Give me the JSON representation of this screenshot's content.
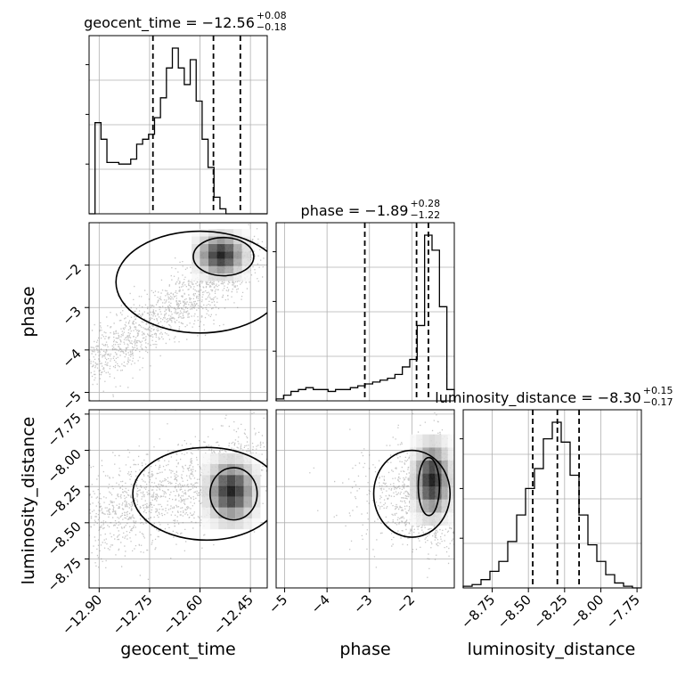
{
  "chart_data": {
    "type": "corner",
    "parameters": [
      {
        "name": "geocent_time",
        "title": {
          "label": "geocent_time = −12.56",
          "upper": "+0.08",
          "lower": "−0.18"
        },
        "range": [
          -12.93,
          -12.4
        ],
        "ticks": [
          "−12.90",
          "−12.75",
          "−12.60",
          "−12.45"
        ],
        "tick_values": [
          -12.9,
          -12.75,
          -12.6,
          -12.45
        ],
        "quantile_lines": [
          -12.74,
          -12.56,
          -12.48
        ],
        "histogram": {
          "edges_start": -12.93,
          "bin_width": 0.0177,
          "counts": [
            0.0,
            0.55,
            0.45,
            0.31,
            0.31,
            0.3,
            0.3,
            0.33,
            0.42,
            0.45,
            0.48,
            0.58,
            0.7,
            0.88,
            1.0,
            0.88,
            0.78,
            0.93,
            0.68,
            0.45,
            0.28,
            0.1,
            0.03,
            0.0,
            0.0,
            0.0,
            0.0,
            0.0,
            0.0,
            0.0
          ]
        }
      },
      {
        "name": "phase",
        "title": {
          "label": "phase = −1.89",
          "upper": "+0.28",
          "lower": "−1.22"
        },
        "range": [
          -5.2,
          -1.0
        ],
        "ticks": [
          "−5",
          "−4",
          "−3",
          "−2"
        ],
        "tick_values": [
          -5,
          -4,
          -3,
          -2
        ],
        "quantile_lines": [
          -3.11,
          -1.89,
          -1.61
        ],
        "histogram": {
          "edges_start": -5.2,
          "bin_width": 0.175,
          "counts": [
            0.01,
            0.03,
            0.05,
            0.06,
            0.07,
            0.06,
            0.06,
            0.05,
            0.06,
            0.06,
            0.07,
            0.08,
            0.09,
            0.1,
            0.11,
            0.12,
            0.14,
            0.18,
            0.22,
            0.4,
            0.88,
            0.8,
            0.5,
            0.06
          ]
        }
      },
      {
        "name": "luminosity_distance",
        "title": {
          "label": "luminosity_distance = −8.30",
          "upper": "+0.15",
          "lower": "−0.17"
        },
        "range": [
          -8.95,
          -7.72
        ],
        "ticks": [
          "−8.75",
          "−8.50",
          "−8.25",
          "−8.00",
          "−7.75"
        ],
        "tick_values": [
          -8.75,
          -8.5,
          -8.25,
          -8.0,
          -7.75
        ],
        "quantile_lines": [
          -8.47,
          -8.3,
          -8.15
        ],
        "histogram": {
          "edges_start": -8.95,
          "bin_width": 0.0615,
          "counts": [
            0.01,
            0.02,
            0.05,
            0.1,
            0.16,
            0.28,
            0.44,
            0.6,
            0.72,
            0.9,
            1.0,
            0.88,
            0.68,
            0.44,
            0.26,
            0.16,
            0.08,
            0.03,
            0.01,
            0.0
          ]
        }
      }
    ],
    "density_panels": [
      {
        "x": "geocent_time",
        "y": "phase",
        "grid": "on"
      },
      {
        "x": "geocent_time",
        "y": "luminosity_distance",
        "grid": "on"
      },
      {
        "x": "phase",
        "y": "luminosity_distance",
        "grid": "on"
      }
    ],
    "colors": {
      "line": "#000000",
      "grid": "#b0b0b0",
      "samples": "#7f7f7f"
    }
  }
}
